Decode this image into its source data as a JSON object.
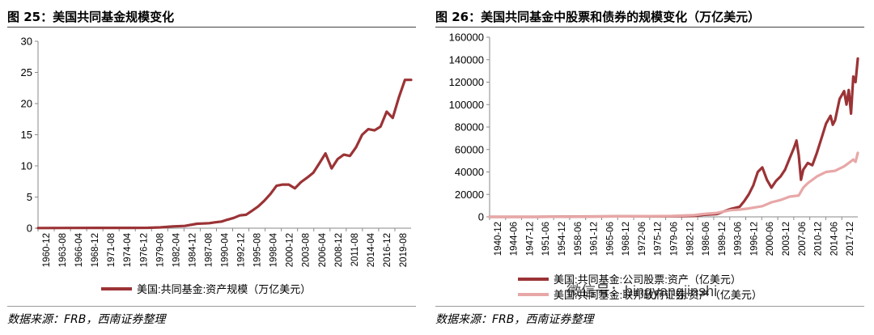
{
  "left": {
    "title": "图 25：美国共同基金规模变化",
    "source": "数据来源：FRB，西南证券整理",
    "chart_data": {
      "type": "line",
      "title": "",
      "xlabel": "",
      "ylabel": "",
      "ylim": [
        0,
        30
      ],
      "yticks": [
        0,
        5,
        10,
        15,
        20,
        25,
        30
      ],
      "xticks": [
        "1960-12",
        "1963-08",
        "1966-04",
        "1968-12",
        "1971-08",
        "1974-04",
        "1976-12",
        "1979-08",
        "1982-04",
        "1984-12",
        "1987-08",
        "1990-04",
        "1992-12",
        "1995-08",
        "1998-04",
        "2000-12",
        "2003-08",
        "2006-04",
        "2008-12",
        "2011-08",
        "2014-04",
        "2016-12",
        "2019-08"
      ],
      "xrange": [
        1960,
        2021
      ],
      "legend_position": "bottom",
      "grid": false,
      "series": [
        {
          "name": "美国:共同基金:资产规模（万亿美元）",
          "color": "#9b3336",
          "x": [
            1960,
            1965,
            1970,
            1975,
            1978,
            1980,
            1982,
            1984,
            1986,
            1987,
            1988,
            1989,
            1990,
            1991,
            1992,
            1993,
            1994,
            1995,
            1996,
            1997,
            1998,
            1999,
            2000,
            2001,
            2002,
            2003,
            2004,
            2005,
            2006,
            2007,
            2008,
            2009,
            2010,
            2011,
            2012,
            2013,
            2014,
            2015,
            2016,
            2017,
            2018,
            2019,
            2020,
            2021
          ],
          "y": [
            0.02,
            0.04,
            0.05,
            0.05,
            0.06,
            0.13,
            0.28,
            0.37,
            0.72,
            0.75,
            0.8,
            0.95,
            1.07,
            1.38,
            1.65,
            2.05,
            2.15,
            2.8,
            3.5,
            4.4,
            5.5,
            6.8,
            7.0,
            7.0,
            6.4,
            7.4,
            8.1,
            8.9,
            10.4,
            12.0,
            9.6,
            11.1,
            11.8,
            11.6,
            13.0,
            15.0,
            15.9,
            15.7,
            16.3,
            18.7,
            17.7,
            21.0,
            23.8,
            23.8
          ]
        }
      ]
    }
  },
  "right": {
    "title": "图 26：美国共同基金中股票和债券的规模变化（万亿美元）",
    "source": "数据来源：FRB，西南证券整理",
    "chart_data": {
      "type": "line",
      "title": "",
      "xlabel": "",
      "ylabel": "",
      "ylim": [
        0,
        160000
      ],
      "yticks": [
        0,
        20000,
        40000,
        60000,
        80000,
        100000,
        120000,
        140000,
        160000
      ],
      "xticks": [
        "1940-12",
        "1944-06",
        "1947-12",
        "1951-06",
        "1954-12",
        "1958-06",
        "1961-12",
        "1965-06",
        "1968-12",
        "1972-06",
        "1975-12",
        "1979-06",
        "1982-12",
        "1986-06",
        "1989-12",
        "1993-06",
        "1996-12",
        "2000-06",
        "2003-12",
        "2007-06",
        "2010-12",
        "2014-06",
        "2017-12"
      ],
      "xrange": [
        1940,
        2021
      ],
      "legend_position": "bottom",
      "grid": false,
      "series": [
        {
          "name": "美国:共同基金:公司股票:资产（亿美元）",
          "color": "#9b3336",
          "x": [
            1940,
            1950,
            1960,
            1970,
            1980,
            1985,
            1987,
            1990,
            1993,
            1995,
            1996,
            1997,
            1998,
            1999,
            2000,
            2001,
            2002,
            2003,
            2004,
            2005,
            2006,
            2007,
            2007.5,
            2008,
            2008.5,
            2009,
            2010,
            2011,
            2012,
            2013,
            2014,
            2015,
            2015.5,
            2016,
            2017,
            2018,
            2018.5,
            2019,
            2019.5,
            2020,
            2020.5,
            2021
          ],
          "y": [
            0,
            0,
            300,
            500,
            500,
            800,
            1800,
            2500,
            7000,
            9000,
            14000,
            20000,
            28000,
            40000,
            44000,
            33000,
            26000,
            32000,
            36000,
            42000,
            52000,
            62000,
            68000,
            55000,
            33000,
            42000,
            48000,
            46000,
            57000,
            70000,
            83000,
            90000,
            82000,
            86000,
            105000,
            112000,
            100000,
            113000,
            92000,
            125000,
            120000,
            141000
          ]
        },
        {
          "name": "美国:共同基金:联邦政府证券:资产（亿美元）",
          "color": "#e8a7a7",
          "x": [
            1940,
            1950,
            1960,
            1970,
            1980,
            1985,
            1987,
            1990,
            1993,
            1995,
            1997,
            2000,
            2002,
            2004,
            2006,
            2008,
            2009,
            2010,
            2012,
            2014,
            2016,
            2018,
            2019,
            2020,
            2020.5,
            2021
          ],
          "y": [
            0,
            0,
            200,
            400,
            800,
            1500,
            2500,
            3500,
            6000,
            6500,
            7500,
            9500,
            13000,
            15000,
            18000,
            19000,
            26000,
            30000,
            36000,
            40000,
            41000,
            45000,
            48000,
            51000,
            49000,
            57000
          ]
        }
      ]
    }
  },
  "watermark": "微信号：bingyangjinshi"
}
